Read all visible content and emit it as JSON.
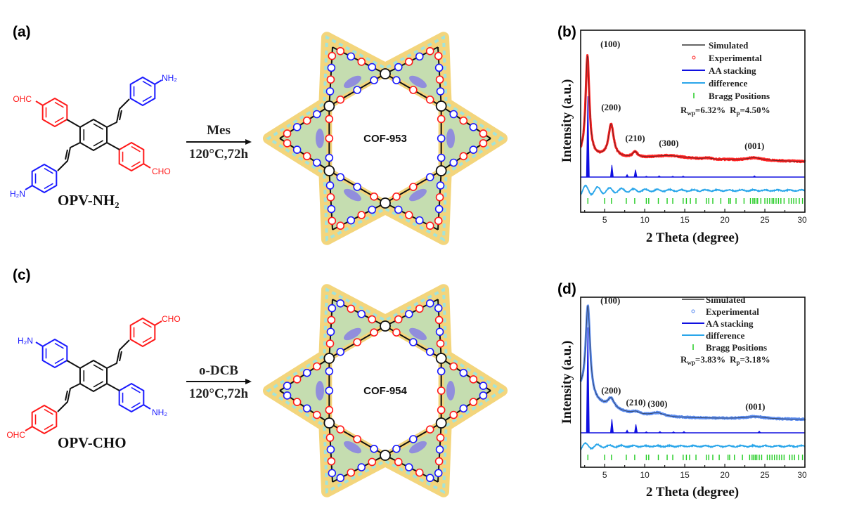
{
  "panels": {
    "a": {
      "label": "(a)",
      "molecule_name": "OPV-NH₂",
      "solvent": "Mes",
      "conditions": "120°C,72h",
      "product": "COF-953",
      "groups": {
        "ul": "OHC",
        "lr": "CHO",
        "ur": "NH₂",
        "ll": "H₂N"
      }
    },
    "b": {
      "label": "(b)"
    },
    "c": {
      "label": "(c)",
      "molecule_name": "OPV-CHO",
      "solvent": "o-DCB",
      "conditions": "120°C,72h",
      "product": "COF-954",
      "groups": {
        "ul": "H₂N",
        "lr": "NH₂",
        "ur": "CHO",
        "ll": "OHC"
      }
    },
    "d": {
      "label": "(d)"
    }
  },
  "colors": {
    "aldehyde": "#ff1a1a",
    "amine": "#1a1aff",
    "bond": "#111111",
    "cof_cyan": "#8fe6f0",
    "cof_yellow": "#f3d57c",
    "cof_purple": "#7a6cf0"
  },
  "chart_data": [
    {
      "type": "line",
      "panel": "(b)",
      "xlabel": "2 Theta (degree)",
      "ylabel": "Intensity (a.u.)",
      "xlim": [
        2,
        30
      ],
      "xticks": [
        "5",
        "10",
        "15",
        "20",
        "25",
        "30"
      ],
      "grid": false,
      "legend_position": "top-right",
      "legend": [
        "Simulated",
        "Experimental",
        "AA stacking",
        "difference",
        "Bragg Positions"
      ],
      "fit": {
        "r_wp_symbol": "R",
        "r_wp_sub": "wp",
        "r_wp_value": "=6.32%",
        "r_p_symbol": "R",
        "r_p_sub": "p",
        "r_p_value": "=4.50%"
      },
      "series_colors": {
        "simulated": "#222222",
        "experimental": "#ff2222",
        "aa": "#1010e0",
        "difference": "#2aa6ea",
        "bragg": "#22cc22"
      },
      "peak_labels": [
        {
          "text": "(100)",
          "x": 2.9
        },
        {
          "text": "(200)",
          "x": 5.8
        },
        {
          "text": "(210)",
          "x": 8.8
        },
        {
          "text": "(300)",
          "x": 13.0
        },
        {
          "text": "(001)",
          "x": 23.7
        }
      ],
      "experimental_peaks": [
        {
          "x": 2.85,
          "h": 0.93,
          "w": 0.28
        },
        {
          "x": 5.8,
          "h": 0.3,
          "w": 0.4
        },
        {
          "x": 8.8,
          "h": 0.05,
          "w": 0.35
        },
        {
          "x": 13.0,
          "h": 0.03,
          "w": 2.5
        },
        {
          "x": 17.9,
          "h": 0.01,
          "w": 0.6
        },
        {
          "x": 23.7,
          "h": 0.025,
          "w": 1.2
        }
      ],
      "experimental_background": 0.035,
      "aa_peaks": [
        {
          "x": 2.9,
          "h": 1.0
        },
        {
          "x": 5.9,
          "h": 0.15
        },
        {
          "x": 7.8,
          "h": 0.03
        },
        {
          "x": 8.85,
          "h": 0.09
        },
        {
          "x": 10.2,
          "h": 0.01
        },
        {
          "x": 11.8,
          "h": 0.015
        },
        {
          "x": 13.5,
          "h": 0.01
        },
        {
          "x": 14.8,
          "h": 0.012
        },
        {
          "x": 23.7,
          "h": 0.015
        }
      ],
      "bragg_positions": [
        2.9,
        5.0,
        5.85,
        7.7,
        8.75,
        10.2,
        10.5,
        11.7,
        12.8,
        13.5,
        14.8,
        15.2,
        15.7,
        16.4,
        17.7,
        18.0,
        18.5,
        19.5,
        20.5,
        20.7,
        21.4,
        22.4,
        23.2,
        23.5,
        23.7,
        23.9,
        24.1,
        24.5,
        25.0,
        25.3,
        25.6,
        25.9,
        26.1,
        26.4,
        26.7,
        27.0,
        27.4,
        28.0,
        28.3,
        28.6,
        28.9,
        29.3,
        29.7
      ]
    },
    {
      "type": "line",
      "panel": "(d)",
      "xlabel": "2 Theta (degree)",
      "ylabel": "Intensity (a.u.)",
      "xlim": [
        2,
        30
      ],
      "xticks": [
        "5",
        "10",
        "15",
        "20",
        "25",
        "30"
      ],
      "grid": false,
      "legend_position": "top-right",
      "legend": [
        "Simulated",
        "Experimental",
        "AA stacking",
        "difference",
        "Bragg Positions"
      ],
      "fit": {
        "r_wp_symbol": "R",
        "r_wp_sub": "wp",
        "r_wp_value": "=3.83%",
        "r_p_symbol": "R",
        "r_p_sub": "p",
        "r_p_value": "=3.18%"
      },
      "series_colors": {
        "simulated": "#222222",
        "experimental": "#5b8cf0",
        "aa": "#1010e0",
        "difference": "#2aa6ea",
        "bragg": "#22cc22"
      },
      "peak_labels": [
        {
          "text": "(100)",
          "x": 2.9
        },
        {
          "text": "(200)",
          "x": 5.8
        },
        {
          "text": "(210)",
          "x": 8.9
        },
        {
          "text": "(300)",
          "x": 11.6
        },
        {
          "text": "(001)",
          "x": 23.8
        }
      ],
      "experimental_peaks": [
        {
          "x": 2.9,
          "h": 0.82,
          "w": 0.33
        },
        {
          "x": 5.8,
          "h": 0.09,
          "w": 0.5
        },
        {
          "x": 8.9,
          "h": 0.02,
          "w": 0.5
        },
        {
          "x": 11.6,
          "h": 0.03,
          "w": 0.9
        },
        {
          "x": 23.8,
          "h": 0.02,
          "w": 1.5
        }
      ],
      "experimental_background": 0.17,
      "aa_peaks": [
        {
          "x": 2.9,
          "h": 1.0
        },
        {
          "x": 5.9,
          "h": 0.13
        },
        {
          "x": 7.8,
          "h": 0.025
        },
        {
          "x": 8.9,
          "h": 0.08
        },
        {
          "x": 10.2,
          "h": 0.01
        },
        {
          "x": 11.9,
          "h": 0.012
        },
        {
          "x": 13.6,
          "h": 0.01
        },
        {
          "x": 14.9,
          "h": 0.012
        },
        {
          "x": 24.3,
          "h": 0.015
        }
      ],
      "bragg_positions": [
        2.9,
        5.0,
        5.85,
        7.7,
        8.75,
        10.2,
        10.5,
        11.7,
        12.8,
        13.5,
        14.8,
        15.2,
        15.6,
        16.4,
        17.7,
        18.0,
        18.5,
        19.3,
        20.4,
        20.6,
        21.2,
        22.2,
        23.1,
        23.4,
        23.6,
        23.8,
        24.0,
        24.3,
        24.6,
        25.3,
        25.6,
        25.9,
        26.2,
        26.5,
        26.8,
        27.1,
        27.4,
        28.1,
        28.4,
        28.7,
        29.2,
        29.7
      ]
    }
  ]
}
